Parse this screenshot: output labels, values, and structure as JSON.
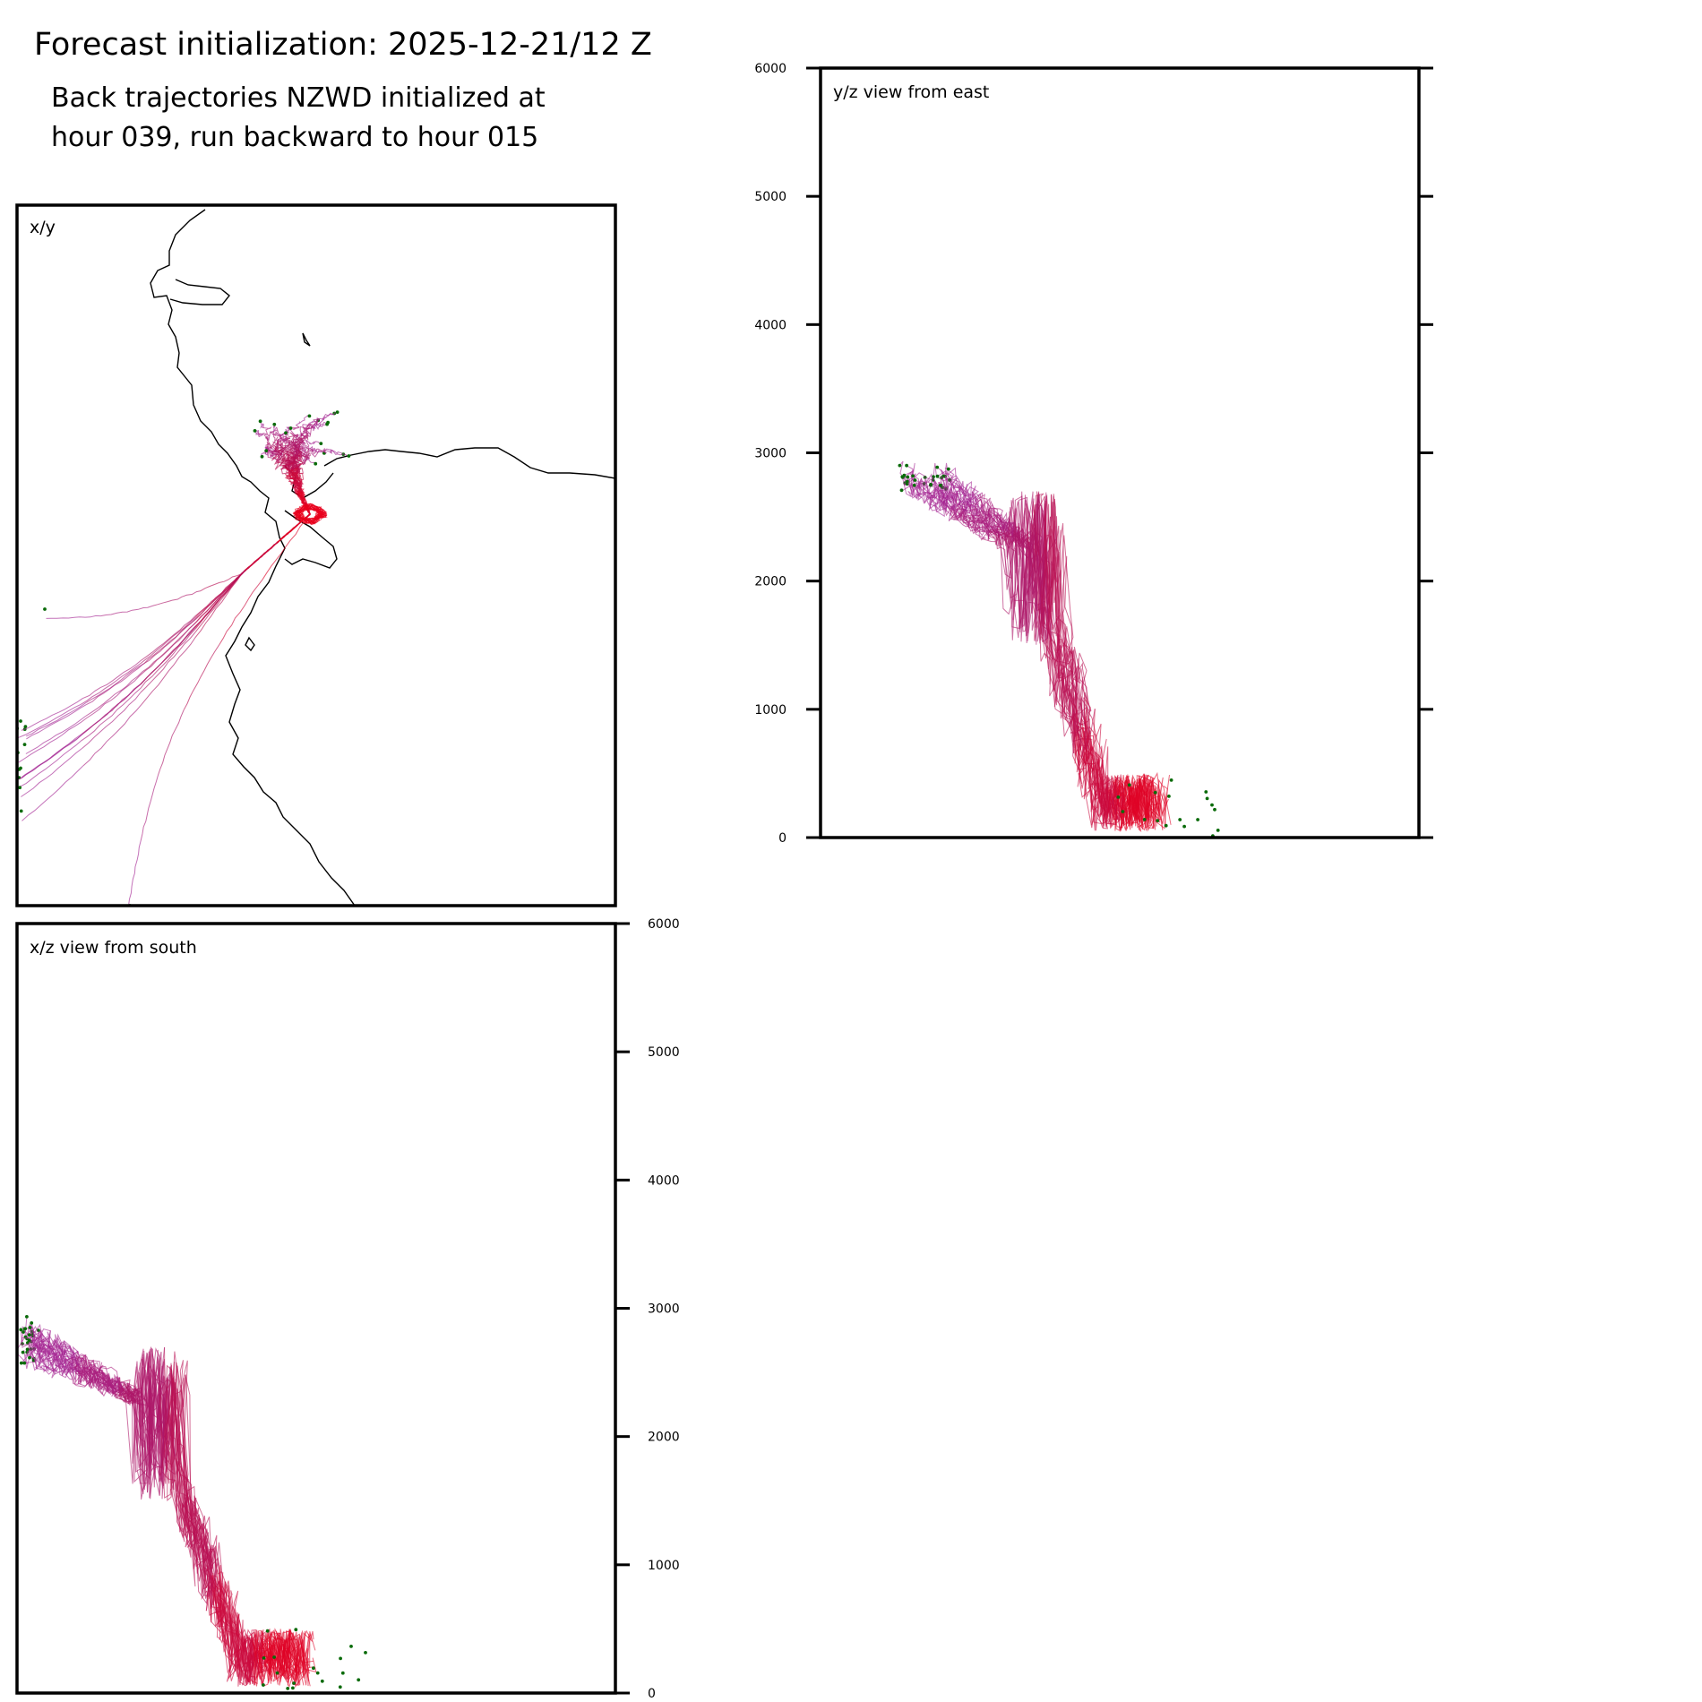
{
  "title": "Forecast initialization: 2025-12-21/12 Z",
  "subtitle_line1": "Back trajectories NZWD initialized at",
  "subtitle_line2": "hour 039, run backward to hour 015",
  "colors": {
    "start": "#e8001c",
    "mid": "#b0135e",
    "end": "#a32a9e",
    "marker": "#0a6b0a",
    "coast": "#000000"
  },
  "chart_data": [
    {
      "type": "line",
      "panel": "xy",
      "label": "x/y",
      "description_source": "trajectory tracks in map view with coastline",
      "series_count": 32
    },
    {
      "type": "line",
      "panel": "yz",
      "label": "y/z view from east",
      "ylim": [
        0,
        6000
      ],
      "yticks": [
        0,
        1000,
        2000,
        3000,
        4000,
        5000,
        6000
      ],
      "tick_side": "left"
    },
    {
      "type": "line",
      "panel": "xz",
      "label": "x/z view from south",
      "ylim": [
        0,
        6000
      ],
      "yticks": [
        0,
        1000,
        2000,
        3000,
        4000,
        5000,
        6000
      ],
      "tick_side": "right"
    }
  ]
}
